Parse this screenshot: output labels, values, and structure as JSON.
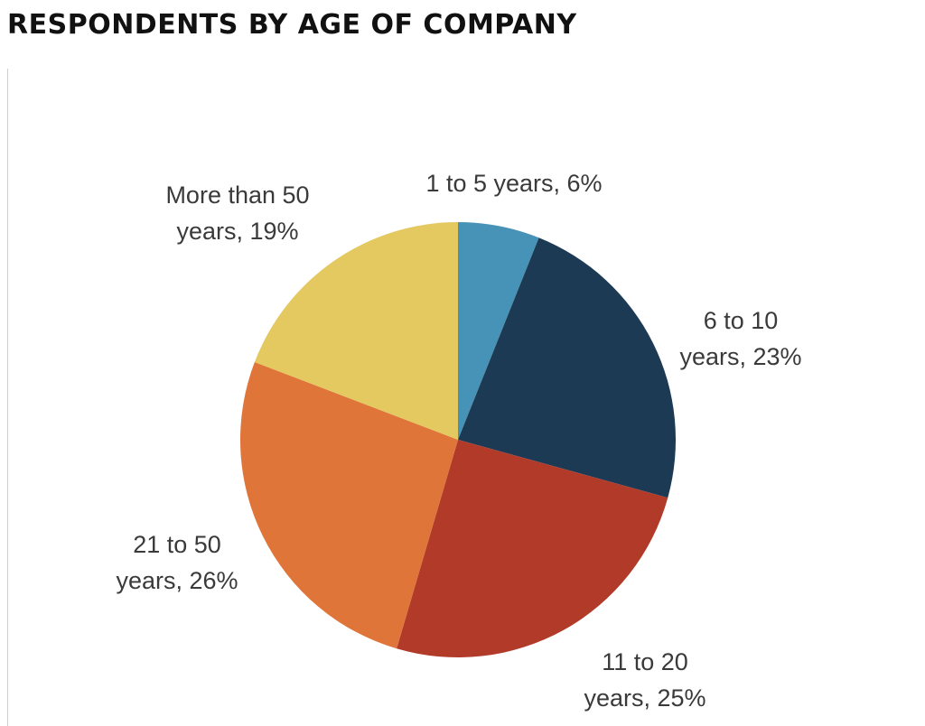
{
  "chart_data": {
    "type": "pie",
    "title": "RESPONDENTS BY AGE OF COMPANY",
    "slices": [
      {
        "name": "1 to 5 years",
        "value": 6,
        "label_lines": [
          "1 to 5 years, 6%"
        ],
        "color": "#4793b7"
      },
      {
        "name": "6 to 10 years",
        "value": 23,
        "label_lines": [
          "6 to 10",
          "years, 23%"
        ],
        "color": "#1d3a55"
      },
      {
        "name": "11 to 20 years",
        "value": 25,
        "label_lines": [
          "11 to 20",
          "years, 25%"
        ],
        "color": "#b13a29"
      },
      {
        "name": "21 to 50 years",
        "value": 26,
        "label_lines": [
          "21 to 50",
          "years, 26%"
        ],
        "color": "#e0753a"
      },
      {
        "name": "More than 50 years",
        "value": 19,
        "label_lines": [
          "More than 50",
          "years, 19%"
        ],
        "color": "#e4c860"
      }
    ],
    "start_angle": "12 o'clock",
    "direction": "clockwise",
    "legend": "none"
  }
}
